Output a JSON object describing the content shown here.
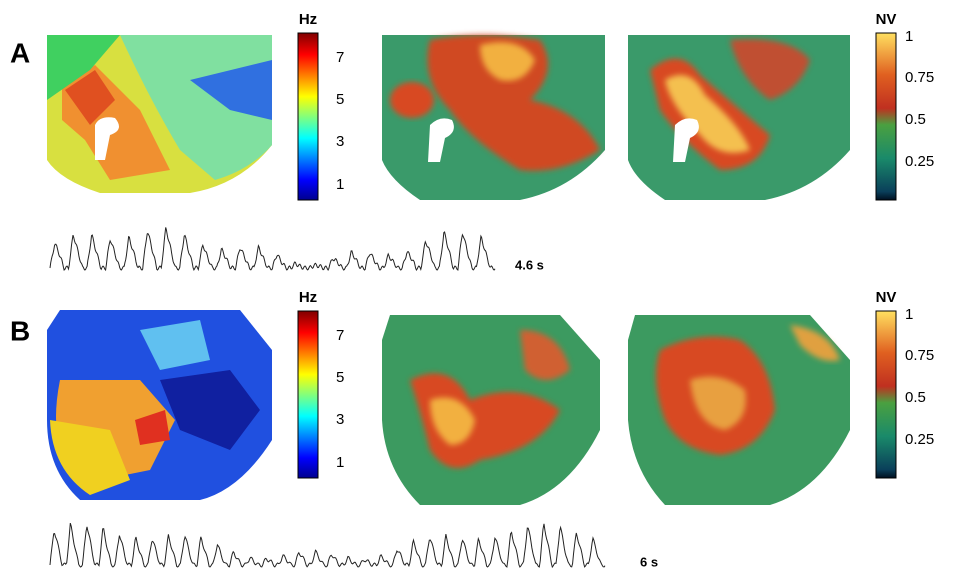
{
  "panels": [
    {
      "label": "A",
      "colorbar_left": {
        "unit": "Hz",
        "ticks": [
          "7",
          "5",
          "3",
          "1"
        ]
      },
      "colorbar_right": {
        "unit": "NV",
        "ticks": [
          "1",
          "0.75",
          "0.5",
          "0.25"
        ]
      },
      "trace_duration": "4.6 s"
    },
    {
      "label": "B",
      "colorbar_left": {
        "unit": "Hz",
        "ticks": [
          "7",
          "5",
          "3",
          "1"
        ]
      },
      "colorbar_right": {
        "unit": "NV",
        "ticks": [
          "1",
          "0.75",
          "0.5",
          "0.25"
        ]
      },
      "trace_duration": "6 s"
    }
  ]
}
